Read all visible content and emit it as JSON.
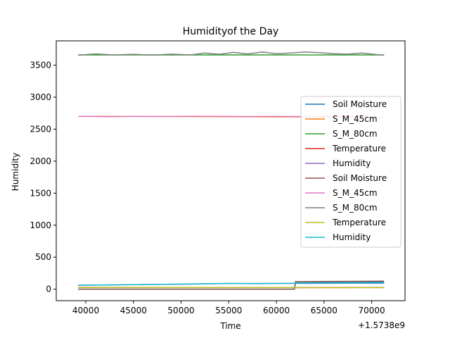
{
  "chart_data": {
    "type": "line",
    "title": "Humidityof the Day",
    "xlabel": "Time",
    "ylabel": "Humidity",
    "x_offset_label": "+1.5738e9",
    "xlim": [
      36900,
      73500
    ],
    "ylim": [
      -180,
      3880
    ],
    "x_ticks": [
      40000,
      45000,
      50000,
      55000,
      60000,
      65000,
      70000
    ],
    "x_tick_labels": [
      "40000",
      "45000",
      "50000",
      "55000",
      "60000",
      "65000",
      "70000"
    ],
    "y_ticks": [
      0,
      500,
      1000,
      1500,
      2000,
      2500,
      3000,
      3500
    ],
    "y_tick_labels": [
      "0",
      "500",
      "1000",
      "1500",
      "2000",
      "2500",
      "3000",
      "3500"
    ],
    "grid": false,
    "legend_position": "center-right",
    "series": [
      {
        "name": "Soil Moisture",
        "color": "#1f77b4",
        "x": [
          39200,
          61900,
          62000,
          71300
        ],
        "y": [
          0,
          0,
          100,
          110
        ]
      },
      {
        "name": "S_M_45cm",
        "color": "#ff7f0e",
        "x": [
          39200,
          71300
        ],
        "y": [
          2700,
          2690
        ]
      },
      {
        "name": "S_M_80cm",
        "color": "#2ca02c",
        "x": [
          39200,
          71300
        ],
        "y": [
          3660,
          3660
        ]
      },
      {
        "name": "Temperature",
        "color": "#d62728",
        "x": [
          39200,
          50000,
          61900,
          62000,
          71300
        ],
        "y": [
          28,
          27,
          26,
          24,
          25
        ]
      },
      {
        "name": "Humidity",
        "color": "#9467bd",
        "x": [
          39200,
          50000,
          55000,
          61900,
          71300
        ],
        "y": [
          62,
          78,
          88,
          90,
          93
        ]
      },
      {
        "name": "Soil Moisture",
        "color": "#8c564b",
        "x": [
          39200,
          61900,
          62000,
          71300
        ],
        "y": [
          0,
          0,
          118,
          125
        ]
      },
      {
        "name": "S_M_45cm",
        "color": "#e377c2",
        "x": [
          39200,
          42000,
          45000,
          48000,
          51000,
          54000,
          57000,
          60000,
          63000,
          66000,
          69000,
          71300
        ],
        "y": [
          2700,
          2695,
          2700,
          2698,
          2702,
          2700,
          2697,
          2700,
          2696,
          2700,
          2698,
          2685
        ]
      },
      {
        "name": "S_M_80cm",
        "color": "#7f7f7f",
        "x": [
          39200,
          41000,
          43000,
          45000,
          47000,
          49000,
          51000,
          52500,
          54000,
          55500,
          57000,
          58500,
          60000,
          61500,
          63000,
          64500,
          66000,
          67500,
          69000,
          70500,
          71300
        ],
        "y": [
          3655,
          3675,
          3660,
          3670,
          3658,
          3672,
          3660,
          3690,
          3670,
          3700,
          3675,
          3705,
          3680,
          3690,
          3705,
          3695,
          3680,
          3672,
          3690,
          3665,
          3655
        ]
      },
      {
        "name": "Temperature",
        "color": "#bcbd22",
        "x": [
          39200,
          50000,
          61900,
          62000,
          71300
        ],
        "y": [
          27,
          27,
          26,
          24,
          25
        ]
      },
      {
        "name": "Humidity",
        "color": "#17becf",
        "x": [
          39200,
          45000,
          50000,
          55000,
          58000,
          61900,
          66000,
          71300
        ],
        "y": [
          60,
          70,
          80,
          90,
          85,
          92,
          95,
          100
        ]
      }
    ]
  }
}
